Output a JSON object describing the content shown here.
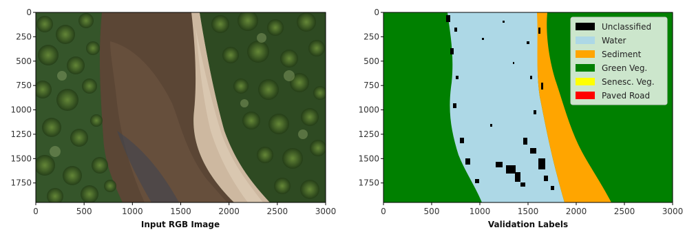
{
  "panels": [
    {
      "xlabel": "Input RGB Image",
      "x_ticks": [
        "0",
        "500",
        "1000",
        "1500",
        "2000",
        "2500",
        "3000"
      ],
      "y_ticks": [
        "0",
        "250",
        "500",
        "750",
        "1000",
        "1250",
        "1500",
        "1750"
      ]
    },
    {
      "xlabel": "Validation Labels",
      "x_ticks": [
        "0",
        "500",
        "1000",
        "1500",
        "2000",
        "2500",
        "3000"
      ],
      "y_ticks": [
        "0",
        "250",
        "500",
        "750",
        "1000",
        "1250",
        "1500",
        "1750"
      ]
    }
  ],
  "legend": {
    "placement": "top-right",
    "items": [
      {
        "label": "Unclassified",
        "color": "#000000"
      },
      {
        "label": "Water",
        "color": "#add8e6"
      },
      {
        "label": "Sediment",
        "color": "#ffa500"
      },
      {
        "label": "Green Veg.",
        "color": "#008000"
      },
      {
        "label": "Senesc. Veg.",
        "color": "#ffff00"
      },
      {
        "label": "Paved Road",
        "color": "#ff0000"
      }
    ]
  },
  "axes": {
    "x_range": [
      0,
      3000
    ],
    "y_range": [
      0,
      1950
    ]
  }
}
